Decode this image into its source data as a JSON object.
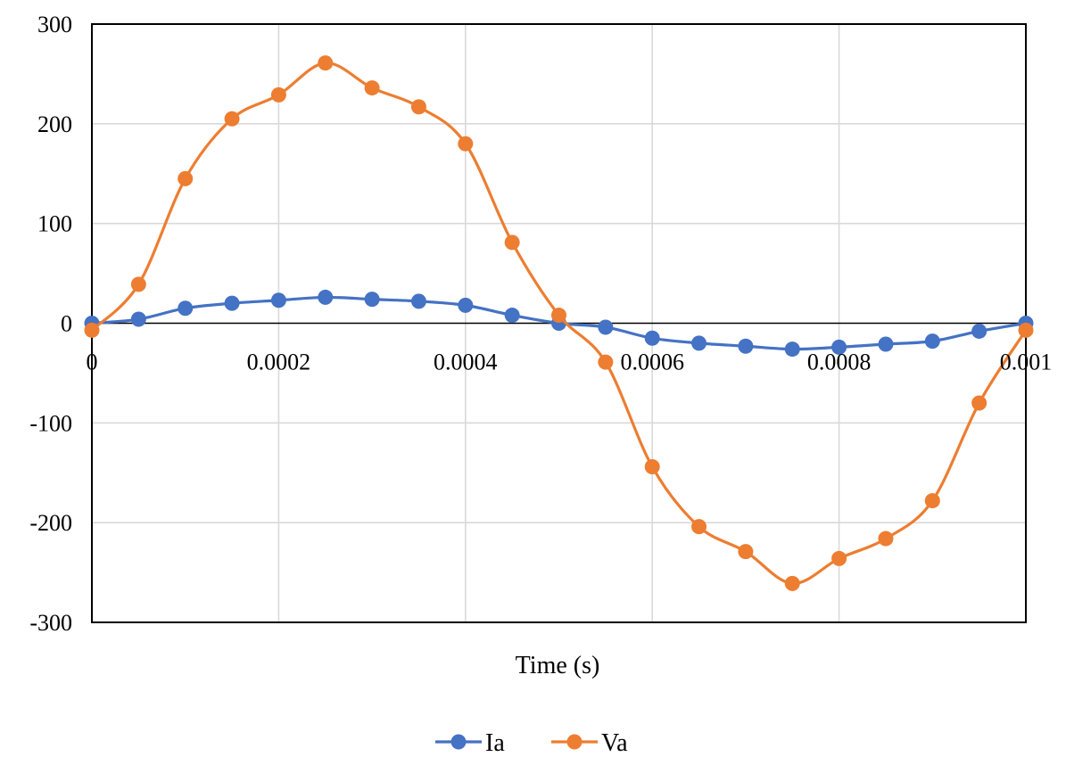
{
  "chart_data": {
    "type": "line",
    "title": "",
    "xlabel": "Time (s)",
    "ylabel": "",
    "xlim": [
      0,
      0.001
    ],
    "ylim": [
      -300,
      300
    ],
    "grid": true,
    "legend_position": "bottom",
    "x_ticks": [
      "0",
      "0.0002",
      "0.0004",
      "0.0006",
      "0.0008",
      "0.001"
    ],
    "y_ticks": [
      "300",
      "200",
      "100",
      "0",
      "-100",
      "-200",
      "-300"
    ],
    "x": [
      0,
      5e-05,
      0.0001,
      0.00015,
      0.0002,
      0.00025,
      0.0003,
      0.00035,
      0.0004,
      0.00045,
      0.0005,
      0.00055,
      0.0006,
      0.00065,
      0.0007,
      0.00075,
      0.0008,
      0.00085,
      0.0009,
      0.00095,
      0.001
    ],
    "series": [
      {
        "name": "Ia",
        "color": "#4472c4",
        "values": [
          0,
          4,
          15,
          20,
          23,
          26,
          24,
          22,
          18,
          8,
          0,
          -4,
          -15,
          -20,
          -23,
          -26,
          -24,
          -21,
          -18,
          -8,
          0
        ]
      },
      {
        "name": "Va",
        "color": "#ed7d31",
        "values": [
          -7,
          39,
          145,
          205,
          229,
          261,
          236,
          217,
          180,
          81,
          8,
          -39,
          -144,
          -204,
          -229,
          -261,
          -236,
          -216,
          -178,
          -80,
          -7
        ]
      }
    ]
  }
}
